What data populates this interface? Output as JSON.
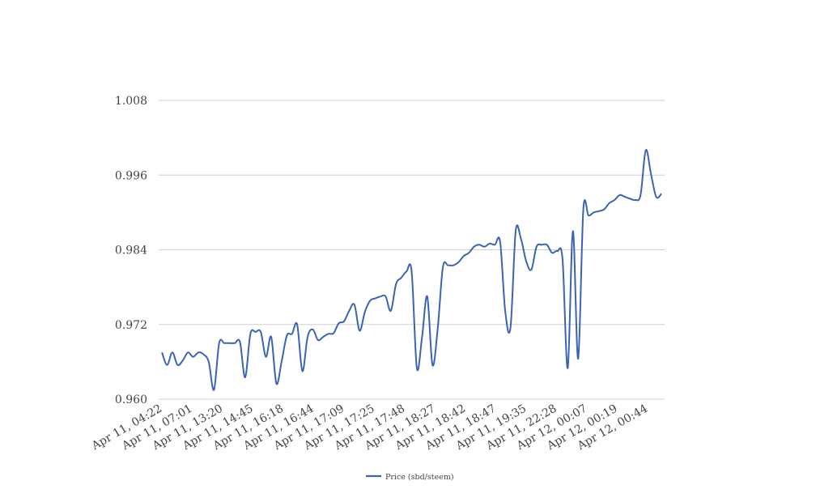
{
  "chart_data": {
    "type": "line",
    "title": "",
    "xlabel": "",
    "ylabel": "",
    "ylim": [
      0.96,
      1.008
    ],
    "y_ticks": [
      "0.960",
      "0.972",
      "0.984",
      "0.996",
      "1.008"
    ],
    "x_tick_labels": [
      "Apr 11, 04:22",
      "Apr 11, 07:01",
      "Apr 11, 13:20",
      "Apr 11, 14:45",
      "Apr 11, 16:18",
      "Apr 11, 16:44",
      "Apr 11, 17:09",
      "Apr 11, 17:25",
      "Apr 11, 17:48",
      "Apr 11, 18:27",
      "Apr 11, 18:42",
      "Apr 11, 18:47",
      "Apr 11, 19:35",
      "Apr 11, 22:28",
      "Apr 12, 00:07",
      "Apr 12, 00:19",
      "Apr 12, 00:44"
    ],
    "grid": true,
    "legend_position": "bottom",
    "series": [
      {
        "name": "Price (sbd/steem)",
        "color": "#3b63b5",
        "values": [
          0.9675,
          0.9655,
          0.9675,
          0.9655,
          0.9662,
          0.9675,
          0.9668,
          0.9675,
          0.9672,
          0.966,
          0.9615,
          0.969,
          0.969,
          0.969,
          0.969,
          0.9692,
          0.9635,
          0.9705,
          0.9708,
          0.9708,
          0.9668,
          0.97,
          0.9625,
          0.966,
          0.9702,
          0.9705,
          0.972,
          0.9645,
          0.97,
          0.9712,
          0.9695,
          0.97,
          0.9705,
          0.9706,
          0.9722,
          0.9725,
          0.9742,
          0.9752,
          0.971,
          0.974,
          0.9758,
          0.9762,
          0.9765,
          0.9765,
          0.9742,
          0.9785,
          0.9795,
          0.9805,
          0.9805,
          0.965,
          0.97,
          0.9765,
          0.9655,
          0.9712,
          0.9812,
          0.9815,
          0.9815,
          0.982,
          0.983,
          0.9835,
          0.9845,
          0.9848,
          0.9845,
          0.985,
          0.9848,
          0.9853,
          0.974,
          0.9715,
          0.987,
          0.9858,
          0.9822,
          0.9808,
          0.9845,
          0.9848,
          0.9848,
          0.9835,
          0.9838,
          0.9825,
          0.965,
          0.987,
          0.9665,
          0.9905,
          0.9895,
          0.99,
          0.9902,
          0.9905,
          0.9915,
          0.992,
          0.9928,
          0.9925,
          0.9922,
          0.992,
          0.9928,
          1.0,
          0.9962,
          0.9925,
          0.993
        ]
      }
    ]
  }
}
